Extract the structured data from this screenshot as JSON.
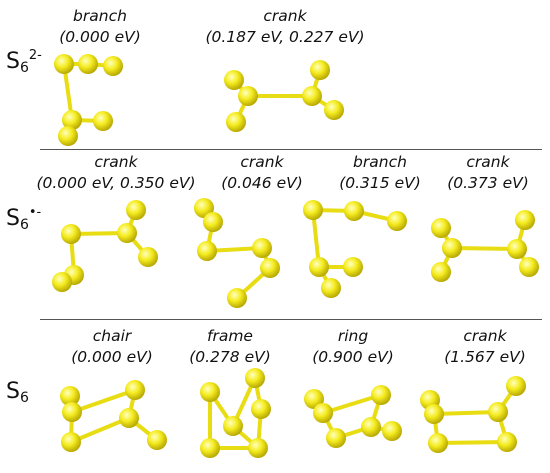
{
  "rows": [
    {
      "label_base": "S",
      "label_sub": "6",
      "label_sup": "2-",
      "items": [
        {
          "name": "branch",
          "energy": "(0.000 eV)"
        },
        {
          "name": "crank",
          "energy": "(0.187 eV, 0.227 eV)"
        }
      ]
    },
    {
      "label_base": "S",
      "label_sub": "6",
      "label_sup": "•-",
      "items": [
        {
          "name": "crank",
          "energy": "(0.000 eV, 0.350 eV)"
        },
        {
          "name": "crank",
          "energy": "(0.046 eV)"
        },
        {
          "name": "branch",
          "energy": "(0.315 eV)"
        },
        {
          "name": "crank",
          "energy": "(0.373 eV)"
        }
      ]
    },
    {
      "label_base": "S",
      "label_sub": "6",
      "label_sup": "",
      "items": [
        {
          "name": "chair",
          "energy": "(0.000 eV)"
        },
        {
          "name": "frame",
          "energy": "(0.278 eV)"
        },
        {
          "name": "ring",
          "energy": "(0.900 eV)"
        },
        {
          "name": "crank",
          "energy": "(1.567 eV)"
        }
      ]
    }
  ],
  "colors": {
    "atom": "#f2ea1a",
    "atom_dark": "#b5a600",
    "bond": "#e8dc12"
  }
}
